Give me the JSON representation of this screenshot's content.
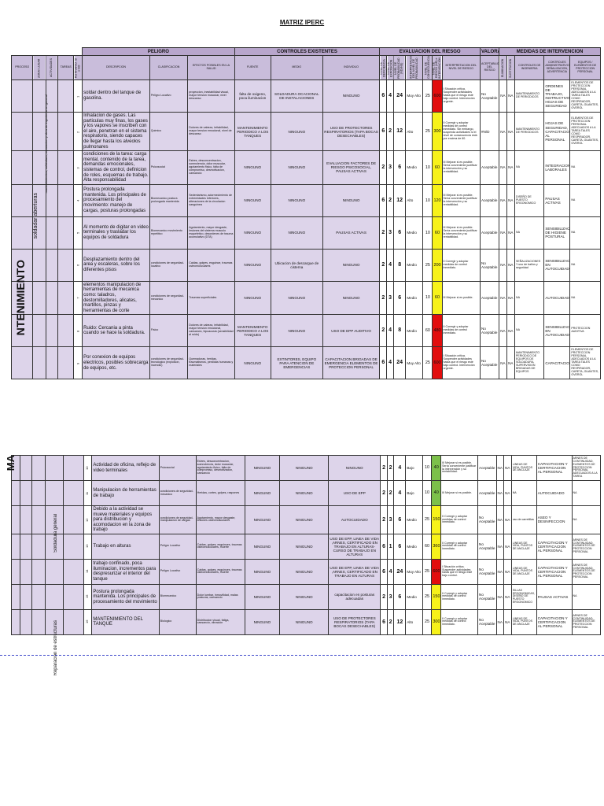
{
  "title": "MATRIZ IPERC",
  "groups": {
    "peligro": "PELIGRO",
    "controles": "CONTROLES EXISTENTES",
    "evaluacion": "EVALUACION DEL RIESGO",
    "valorac": "VALORAC",
    "medidas": "MEDIDAS DE INTERVENCION"
  },
  "columns": {
    "proceso": "PROCESO",
    "zona": "ZONA/ LUGAR",
    "actividades": "ACTIVIDADES",
    "tarea": "TAREAS",
    "rutinario": "RUTINARIO: SI o NO",
    "descripcion": "DESCRIPCION",
    "clasificacion": "CLASIFICACION",
    "efectos": "EFECTOS POSIBLES EN LA SALUD",
    "fuente": "FUENTE",
    "medio": "MEDIO",
    "individuo": "INDIVIDUO",
    "nd": "NIVEL DE DEFICIENCIA",
    "ne": "NIVEL DE EXPOSICION",
    "np": "NIVEL DE PROBABILIDAD (NDxNE)",
    "interp_np": "INTERPRETACION DEL NIVEL DE PROBABILIDAD",
    "nc": "NIVEL DE CONSECUENCIA",
    "nr": "NIVEL DE RIESGO (NR) e INTERVENCION",
    "interp_nr": "INTERPRETACION DEL NIVEL DE RIESGO",
    "aceptabilidad": "ACEPTABILIDAD DEL RIESGO",
    "eliminacion": "ELIMINACION",
    "sustitucion": "SUSTITUCION",
    "ingenieria": "CONTROLES DE INGENIERIA",
    "admin": "CONTROLES ADMINISTRATIVOS, SEÑALIZACION, ADVERTENCIA",
    "epp": "EQUIPOS / ELEMENTOS DE PROTECCION PERSONAL"
  },
  "side1": {
    "big": "NTENIMIENTO",
    "mid": "soldadar aberturas",
    "small": "mantenimientos, soldadura, reparacion y obra de ingenieria en general"
  },
  "side2": {
    "big": "MA",
    "mid": "Soldadura general",
    "small": "Reparacion de estructuras"
  },
  "rows1": [
    {
      "num": "1",
      "desc": "soldar dentro del tanque de gasolina.",
      "clas": "Peligro Locativo",
      "efectos": "proyeccion, inestabilidad visual, mayor tension muscular, nivel descanso",
      "fuente": "falta de oxigeno, poca iluminacion",
      "medio": "SOLDADURA OCACIONAL DE INSTALACIONES",
      "indiv": "NINGUNO",
      "nd": "6",
      "ne": "4",
      "np": "24",
      "interp": "Muy Alto",
      "nc": "25",
      "nr": "600",
      "nrc": "red",
      "interp_nr": "I Situación crítica. Suspender actividades hasta que el riesgo esté bajo control. Intervención urgente.",
      "acep": "No Aceptable",
      "elim": "NA",
      "sust": "NA",
      "ing": "MANTENIMIENTO DE PERIODICOS",
      "adm": "ORDENES DE TRABAJO, INSTRUCTIVOS, HOJAS DE SEGURIDAD",
      "epp": "ELEMENTOS DE PROTECCION PERSONAL ADECUADOS A LA TAREA TALES COMO RESPIRADOR, CARETA, GUANTES, OVEROL"
    },
    {
      "num": "2",
      "desc": "Inhalacion de gases. Las particulas muy finas, los gases y los vapores se inscriben con el aire, penetran en el sistema respiratorio, siendo capaces de llegar hasta los alveolos pulmonares",
      "clas": "Quimico",
      "efectos": "Dolores de cabeza, irritabilidad, mayor tension emocional, nivel de descanso",
      "fuente": "MANTENIMIENTO PERIODICO A LOS TANQUES",
      "medio": "NINGUNO",
      "indiv": "USO DE PROTECTORES RESPIRATORIOS (TAPA BOCAS DESECHABLES)",
      "nd": "6",
      "ne": "2",
      "np": "12",
      "interp": "Alto",
      "nc": "25",
      "nr": "300",
      "nrc": "yel",
      "interp_nr": "II Corregir y adoptar medidas de control inmediato. Sin embargo, suspenda actividades si el nivel de consecuencia está por encima de 60.",
      "acep": "#N/D",
      "elim": "NA",
      "sust": "NA",
      "ing": "MANTENIMIENTO DE PERIODICOS",
      "adm": "HOJAS DE SEGURIDAD, CAPACITACION AL PERSONAL",
      "epp": "ELEMENTOS DE PROTECCION PERSONAL ADECUADOS A LA TAREA TALES COMO RESPIRADOR, CARETA, GUANTES, OVEROL"
    },
    {
      "num": "3",
      "desc": "condiciones de la tarea: carga mental, contenido de la tarea, demandas emocionales, sistemas de control, definicion de roles, esquemas de trabajo. Alta responsabilidad",
      "clas": "Psicosocial",
      "efectos": "Estres, desconcentracion, somnolencia, dolor muscular, agotamiento fisico, falta de compromiso, desmotivacion, cansancio",
      "fuente": "NINGUNO",
      "medio": "NINGUNO",
      "indiv": "EVALUACION FACTORES DE RIESGO PSICOSOCIAL, PAUSAS ACTIVAS",
      "nd": "2",
      "ne": "3",
      "np": "6",
      "interp": "Medio",
      "nc": "10",
      "nr": "60",
      "nrc": "yel",
      "interp_nr": "III Mejorar si es posible. Sería conveniente justificar la intervención y su rentabilidad.",
      "acep": "Aceptable",
      "elim": "NA",
      "sust": "NA",
      "ing": "NA",
      "adm": "INTEGRACIONES LABORALES",
      "epp": "NA"
    },
    {
      "num": "4",
      "desc": "Postura prolongada mantenida. Los principales de procesamiento del movimiento: manejo de cargas, posturas prolongadas",
      "clas": "Biomecanico postura prolongada mantenida",
      "efectos": "Sedentarismo, adormecimiento de extremidades inferiores, alteraciones de la circulacion sanguinea",
      "fuente": "NINGUNO",
      "medio": "NINGUNO",
      "indiv": "NINGUNO",
      "nd": "6",
      "ne": "2",
      "np": "12",
      "interp": "Alto",
      "nc": "10",
      "nr": "120",
      "nrc": "yel",
      "interp_nr": "III Mejorar si es posible. Sería conveniente justificar la intervención y su rentabilidad.",
      "acep": "Aceptable",
      "elim": "NA",
      "sust": "NA",
      "ing": "DISEÑO DE PUESTO ERGONOMICO",
      "adm": "PAUSAS ACTIVAS",
      "epp": "NA"
    },
    {
      "num": "5",
      "desc": "Al momento de digitar en video terminales y trasladar los equipos de soldadura",
      "clas": "Biomecanico movimiento repetitivo",
      "efectos": "Agotamiento, mayor desgaste, lesiones del sistema musculo esqueletico, desordenes de trauma acumulativo (DTA)",
      "fuente": "NINGUNO",
      "medio": "NINGUNO",
      "indiv": "PAUSAS ACTIVAS",
      "nd": "2",
      "ne": "3",
      "np": "6",
      "interp": "Medio",
      "nc": "10",
      "nr": "60",
      "nrc": "yel",
      "interp_nr": "III Mejorar si es posible. Sería conveniente justificar la intervención y su rentabilidad.",
      "acep": "Aceptable",
      "elim": "NA",
      "sust": "NA",
      "ing": "NA",
      "adm": "SENSIBILIZACION DE HIGIENE POSTURAL",
      "epp": "NA"
    },
    {
      "num": "6",
      "desc": "Desplazamiento dentro del area y escaleras, sobre los diferentes pisos",
      "clas": "condiciones de seguridad-locativo",
      "efectos": "Caidas, golpes, esguince, traumas osteomusculares",
      "fuente": "NINGUNO",
      "medio": "Ubicacion de descargue de cisterna",
      "indiv": "NINGUNO",
      "nd": "2",
      "ne": "4",
      "np": "8",
      "interp": "Medio",
      "nc": "25",
      "nr": "200",
      "nrc": "yel",
      "interp_nr": "II Corregir y adoptar medidas de control inmediato.",
      "acep": "No Aceptable",
      "elim": "NA",
      "sust": "NA",
      "ing": "SEÑALIZACIONES Y uso de baños y seguridad",
      "adm": "SENSIBILIZACION EN AUTOCUIDADO",
      "epp": "NA"
    },
    {
      "num": "7",
      "desc": "elementos manipulacion de herramientas de mecanica como: taladros, destornilladores, alicates, martillos, pinzas y herramientas de corte",
      "clas": "condiciones de seguridad-mecanico",
      "efectos": "Traumas superficiales",
      "fuente": "NINGUNO",
      "medio": "NINGUNO",
      "indiv": "NINGUNO",
      "nd": "2",
      "ne": "3",
      "np": "6",
      "interp": "Medio",
      "nc": "10",
      "nr": "60",
      "nrc": "yel",
      "interp_nr": "III Mejorar si es posible.",
      "acep": "Aceptable",
      "elim": "NA",
      "sust": "NA",
      "ing": "NA",
      "adm": "AUTOCUIDADO",
      "epp": "NA"
    },
    {
      "num": "8",
      "desc": "Ruido: Cercania a pinta cuando se hace la soldadura.",
      "clas": "Fisico",
      "efectos": "Dolores de cabeza, irritabilidad, mayor tension emocional, cansancio, hipoacusia (sensibilidad al ruido)",
      "fuente": "MANTENIMIENTO PERIODICO A LOS TANQUES",
      "medio": "NINGUNO",
      "indiv": "USO DE EPP AUDITIVO",
      "nd": "2",
      "ne": "4",
      "np": "8",
      "interp": "Medio",
      "nc": "60",
      "nr": "480",
      "nrc": "red",
      "interp_nr": "II Corregir y adoptar medidas de control inmediato.",
      "acep": "No Aceptable",
      "elim": "NA",
      "sust": "NA",
      "ing": "NA",
      "adm": "SENSIBILIZACION EN AUTOCUIDADO",
      "epp": "PROTECCION AUDITIVA"
    },
    {
      "num": "9",
      "desc": "Por conexion de equipos electricos, posibles sobrecarga de equipos, etc.",
      "clas": "condiciones de seguridad-tecnologico (explosion, incendio)",
      "efectos": "Quemaduras, heridas, traumatismos, perdidas humanas y materiales",
      "fuente": "NINGUNO",
      "medio": "EXTINTORES, EQUIPO PARA ATENCION DE EMERGENCIAS",
      "indiv": "CAPACITACION BRIGADAS DE EMERGENCIA ELEMENTOS DE PROTECCION PERSONAL",
      "nd": "6",
      "ne": "4",
      "np": "24",
      "interp": "Muy Alto",
      "nc": "25",
      "nr": "600",
      "nrc": "red",
      "interp_nr": "I Situación crítica. Suspender actividades hasta que el riesgo esté bajo control. Intervención urgente.",
      "acep": "No Aceptable",
      "elim": "NA",
      "sust": "NA",
      "ing": "MANTENIMIENTO PERIODICO DE EQUIPOS DE SOLDADURA, SUPERVISION BRIGADAS DE EQUIPOS",
      "adm": "CAPACITACION",
      "epp": "ELEMENTOS DE PROTECCION PERSONAL ADECUADOS A LA TAREA TALES COMO RESPIRADOR, CARETA, GUANTES, OVEROL"
    }
  ],
  "rows2": [
    {
      "num": "10",
      "desc": "Actividad de oficina, reflejo de video terminales",
      "clas": "Psicosocial",
      "efectos": "Estres, desconcentracion, somnolencia, dolor muscular, agotamiento fisico, falta de compromiso, desmotivacion, cansancio",
      "fuente": "NINGUNO",
      "medio": "NINGUNO",
      "indiv": "NINGUNO",
      "nd": "2",
      "ne": "2",
      "np": "4",
      "interp": "Bajo",
      "nc": "10",
      "nr": "40",
      "nrc": "grn",
      "interp_nr": "III Mejorar si es posible. Sería conveniente justificar la intervención y su rentabilidad.",
      "acep": "Aceptable",
      "elim": "NA",
      "sust": "NA",
      "ing": "LINEAS DE VIDA, PUNTOS DE ANCLAJE",
      "adm": "CAPACITACION Y CERTIFICACION AL PERSONAL",
      "epp": "ARNES DE CONTINUIDAD, ELEMENTOS DE PROTECCION PERSONAL ADECUADOS A LA TAREA"
    },
    {
      "num": "11",
      "desc": "Manipulacion de herramientas de trabajo",
      "clas": "condiciones de seguridad-mecanico",
      "efectos": "Heridas, cortes, golpes, raspones",
      "fuente": "NINGUNO",
      "medio": "NINGUNO",
      "indiv": "USO DE EPP",
      "nd": "2",
      "ne": "2",
      "np": "4",
      "interp": "Bajo",
      "nc": "10",
      "nr": "40",
      "nrc": "grn",
      "interp_nr": "III Mejorar si es posible.",
      "acep": "Aceptable",
      "elim": "NA",
      "sust": "NA",
      "ing": "NA",
      "adm": "AUTOCUIDADO",
      "epp": "NA"
    },
    {
      "num": "12",
      "desc": "Debido a la actividad se mueve materiales y equipos para distribucion y acomodacion en la zona de trabajo",
      "clas": "condiciones de seguridad-manipulacion de cargas",
      "efectos": "Agotamiento, mayor desgaste, lesiones osteomusculares",
      "fuente": "NINGUNO",
      "medio": "NINGUNO",
      "indiv": "AUTOCUIDADO",
      "nd": "2",
      "ne": "3",
      "np": "6",
      "interp": "Medio",
      "nc": "25",
      "nr": "150",
      "nrc": "yel",
      "interp_nr": "II Corregir y adoptar medidas de control inmediato.",
      "acep": "No Aceptable",
      "elim": "NA",
      "sust": "NA",
      "ing": "uso de carretillas",
      "adm": "ASEO Y DESINFECCION",
      "epp": "NA"
    },
    {
      "num": "13",
      "desc": "Trabajo en alturas",
      "clas": "Peligro Locativo",
      "efectos": "Caidas, golpes, esguinces, traumas osteomusculares, muerte",
      "fuente": "NINGUNO",
      "medio": "NINGUNO",
      "indiv": "USO DE EPP, LINEA DE VIDA ,ARNES, CERTIFICADO EN TRABAJO EN ALTURAS-CURSO DE TRABAJO EN ALTURAS",
      "nd": "6",
      "ne": "1",
      "np": "6",
      "interp": "Medio",
      "nc": "60",
      "nr": "360",
      "nrc": "yel",
      "interp_nr": "II Corregir y adoptar medidas de control inmediato.",
      "acep": "No Aceptable",
      "elim": "NA",
      "sust": "NA",
      "ing": "LINEAS DE VIDA, PUNTOS DE ANCLAJE",
      "adm": "CAPACITACION Y CERTIFICACION AL PERSONAL",
      "epp": "ARNES DE CONTINUIDAD, ELEMENTOS DE PROTECCION PERSONAL"
    },
    {
      "num": "14",
      "desc": "trabajo confinado, poca iluminacion, incrementos para despresurizar el interior del tanque",
      "clas": "Peligro Locativo",
      "efectos": "Caidas, golpes, esguinces, traumas osteomusculares, muerte",
      "fuente": "NINGUNO",
      "medio": "NINGUNO",
      "indiv": "USO DE EPP, LINEA DE VIDA ,ARNES, CERTIFICADO EN TRABAJO EN ALTURAS",
      "nd": "6",
      "ne": "4",
      "np": "24",
      "interp": "Muy Alto",
      "nc": "25",
      "nr": "600",
      "nrc": "red",
      "interp_nr": "I Situación crítica. Suspender actividades hasta que el riesgo esté bajo control.",
      "acep": "No Aceptable",
      "elim": "NA",
      "sust": "NA",
      "ing": "LINEAS DE VIDA, PUNTOS DE ANCLAJE",
      "adm": "CAPACITACION Y CERTIFICACION AL PERSONAL",
      "epp": "ARNES DE CONTINUIDAD, ELEMENTOS DE PROTECCION PERSONAL"
    },
    {
      "num": "15",
      "desc": "Postura prolongada mantenida. Los principales de procesamiento del movimiento",
      "clas": "Biomecanico",
      "efectos": "Dolor lumbar, inmovilidad, malas posturas, cansancio",
      "fuente": "NINGUNO",
      "medio": "NINGUNO",
      "indiv": "capacitacion en posturas adecuadas",
      "nd": "2",
      "ne": "3",
      "np": "6",
      "interp": "Medio",
      "nc": "25",
      "nr": "150",
      "nrc": "yel",
      "interp_nr": "II Corregir y adoptar medidas de control inmediato.",
      "acep": "No Aceptable",
      "elim": "NA",
      "sust": "NA",
      "ing": "SILLAS ERGONOMICAS, DISEÑO DE PUESTO ERGONOMICO",
      "adm": "PAUSAS ACTIVAS",
      "epp": "NA"
    },
    {
      "num": "16",
      "desc": "MANTENIMIENTO DEL TANQUE",
      "clas": "Biologico",
      "efectos": "Distribucion visual, fatiga, cansancio, vibracion",
      "fuente": "NINGUNO",
      "medio": "NINGUNO",
      "indiv": "USO DE PROTECTORES RESPIRATORIOS (TAPA BOCAS DESECHABLES)",
      "nd": "6",
      "ne": "2",
      "np": "12",
      "interp": "Alto",
      "nc": "25",
      "nr": "300",
      "nrc": "yel",
      "interp_nr": "II Corregir y adoptar medidas de control inmediato.",
      "acep": "No Aceptable",
      "elim": "NA",
      "sust": "NA",
      "ing": "LINEAS DE VIDA, PUNTOS DE ANCLAJE",
      "adm": "CAPACITACION Y CERTIFICACION AL PERSONAL",
      "epp": "ARNES DE CONTINUIDAD, ELEMENTOS DE PROTECCION PERSONAL"
    }
  ]
}
